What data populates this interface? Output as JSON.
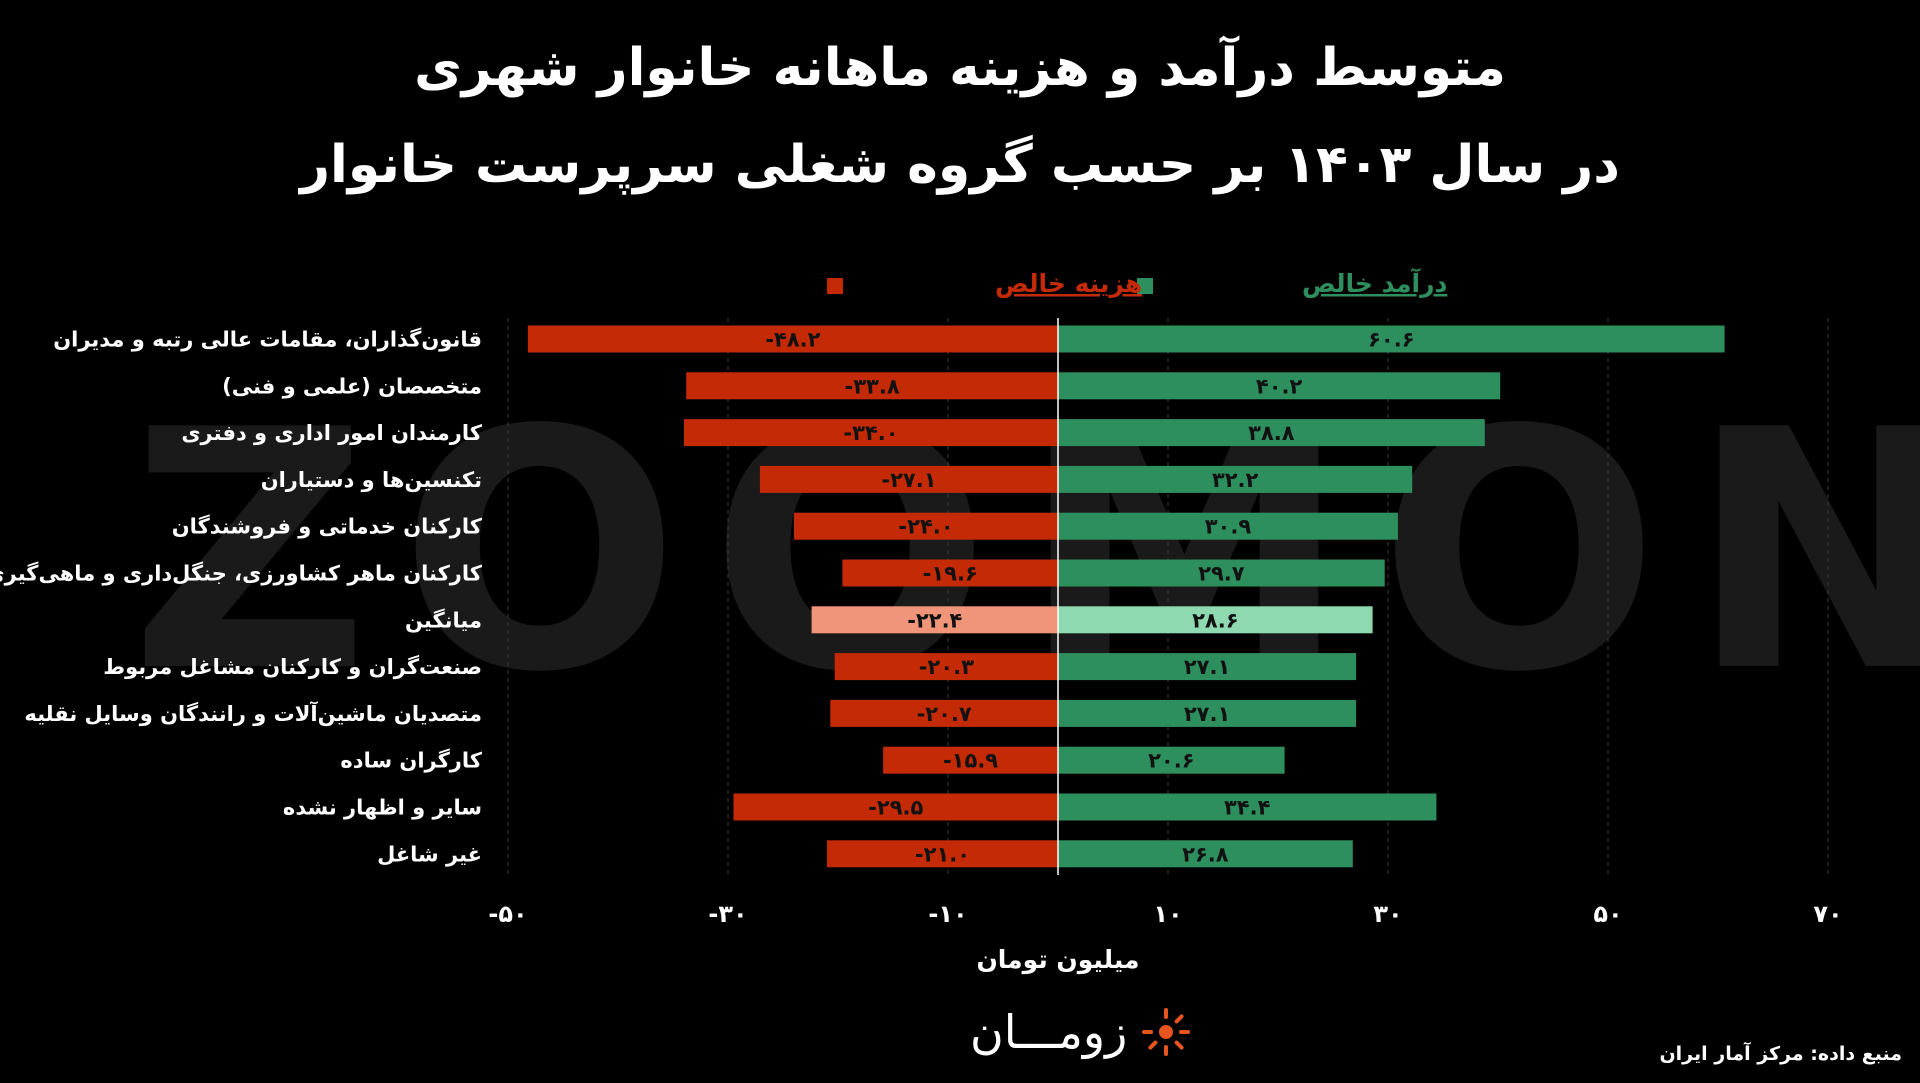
{
  "title_line1": "متوسط درآمد و هزینه ماهانه خانوار شهری",
  "title_line2": "در سال ۱۴۰۳ بر حسب گروه شغلی سرپرست خانوار",
  "watermark": "ZOOMON",
  "logo_text": "زومـــان",
  "source": "منبع داده: مرکز آمار ایران",
  "colors": {
    "expense": "#c42a06",
    "income": "#2e8f5e",
    "expense_highlight": "#f0957a",
    "income_highlight": "#8fd9b0",
    "label": "#ffffff"
  },
  "chart_data": {
    "type": "bar",
    "orientation": "horizontal-diverging",
    "legend_position": "top",
    "grid": true,
    "xlabel": "میلیون تومان",
    "xlim": [
      -50,
      70
    ],
    "xticks": [
      "-۵۰",
      "-۳۰",
      "-۱۰",
      "۱۰",
      "۳۰",
      "۵۰",
      "۷۰"
    ],
    "categories": [
      "قانون‌گذاران، مقامات عالی رتبه و مدیران",
      "متخصصان (علمی و فنی)",
      "کارمندان امور اداری و دفتری",
      "تکنسین‌ها و دستیاران",
      "کارکنان خدماتی و فروشندگان",
      "کارکنان ماهر کشاورزی، جنگل‌داری و ماهی‌گیری",
      "میانگین",
      "صنعت‌گران و کارکنان مشاغل مربوط",
      "متصدیان ماشین‌آلات و رانندگان وسایل نقلیه",
      "کارگران ساده",
      "سایر و اظهار نشده",
      "غیر شاغل"
    ],
    "highlight_category": "میانگین",
    "series": [
      {
        "name": "درآمد خالص",
        "values": [
          60.6,
          40.2,
          38.8,
          32.2,
          30.9,
          29.7,
          28.6,
          27.1,
          27.1,
          20.6,
          34.4,
          26.8
        ],
        "labels": [
          "۶۰.۶",
          "۴۰.۲",
          "۳۸.۸",
          "۳۲.۲",
          "۳۰.۹",
          "۲۹.۷",
          "۲۸.۶",
          "۲۷.۱",
          "۲۷.۱",
          "۲۰.۶",
          "۳۴.۴",
          "۲۶.۸"
        ]
      },
      {
        "name": "هزینه خالص",
        "values": [
          -48.2,
          -33.8,
          -34.0,
          -27.1,
          -24.0,
          -19.6,
          -22.4,
          -20.3,
          -20.7,
          -15.9,
          -29.5,
          -21.0
        ],
        "labels": [
          "-۴۸.۲",
          "-۳۳.۸",
          "-۳۴.۰",
          "-۲۷.۱",
          "-۲۴.۰",
          "-۱۹.۶",
          "-۲۲.۴",
          "-۲۰.۳",
          "-۲۰.۷",
          "-۱۵.۹",
          "-۲۹.۵",
          "-۲۱.۰"
        ]
      }
    ]
  }
}
